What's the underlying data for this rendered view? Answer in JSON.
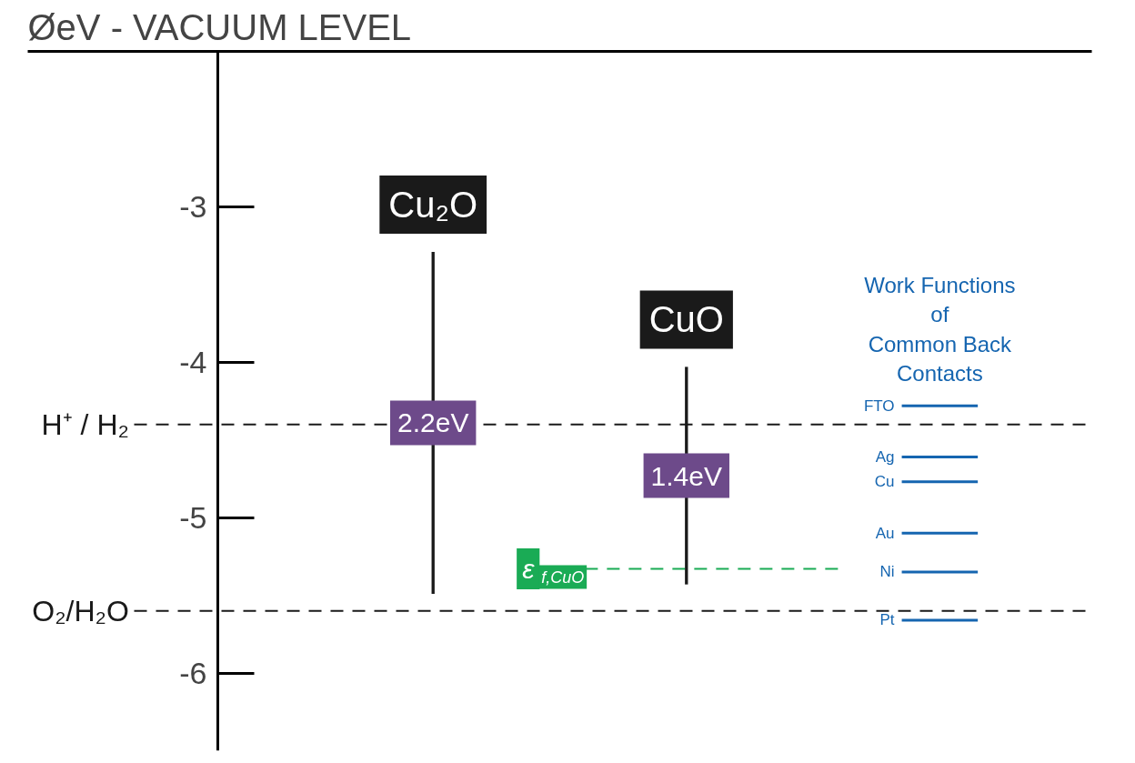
{
  "chart_data": {
    "type": "bar",
    "title": "ØeV - VACUUM LEVEL",
    "categories": [
      "Cu₂O",
      "CuO"
    ],
    "ylim": [
      -6.5,
      -2.0
    ],
    "yticks": [
      -3,
      -4,
      -5,
      -6
    ],
    "grid": false,
    "series": [
      {
        "color": "#1a1a1a",
        "base": [
          -5.49,
          -5.43
        ],
        "values": [
          2.2,
          1.4
        ],
        "value_labels": [
          "2.2eV",
          "1.4eV"
        ]
      }
    ],
    "annotations": [
      "Work Functions\nof\nCommon Back\nContacts"
    ],
    "ref_lines": [
      {
        "axis": "y",
        "value": -4.4,
        "label": "H⁺ / H₂",
        "color": "#1a1a1a",
        "line_style": "dashed"
      },
      {
        "axis": "y",
        "value": -5.6,
        "label": "O₂/H₂O",
        "color": "#1a1a1a",
        "line_style": "dashed"
      },
      {
        "axis": "y",
        "value": -5.33,
        "label": "ε$_{f,CuO}$",
        "color": "#1aab55",
        "line_style": "dashed"
      },
      {
        "axis": "y",
        "value": -4.28,
        "label": "FTO",
        "color": "#1565b0",
        "line_style": "solid"
      },
      {
        "axis": "y",
        "value": -4.61,
        "label": "Ag",
        "color": "#1565b0",
        "line_style": "solid"
      },
      {
        "axis": "y",
        "value": -4.77,
        "label": "Cu",
        "color": "#1565b0",
        "line_style": "solid"
      },
      {
        "axis": "y",
        "value": -5.1,
        "label": "Au",
        "color": "#1565b0",
        "line_style": "solid"
      },
      {
        "axis": "y",
        "value": -5.35,
        "label": "Ni",
        "color": "#1565b0",
        "line_style": "solid"
      },
      {
        "axis": "y",
        "value": -5.66,
        "label": "Pt",
        "color": "#1565b0",
        "line_style": "solid"
      }
    ]
  }
}
